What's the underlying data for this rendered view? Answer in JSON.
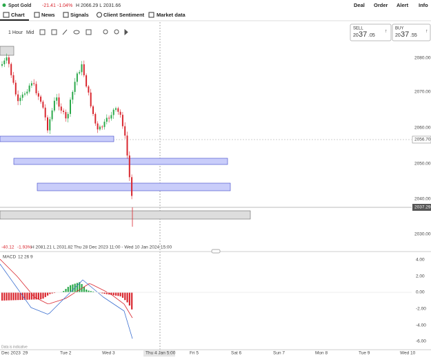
{
  "header": {
    "instrument": "Spot Gold",
    "change": "-21.41",
    "change_pct": "-1.04%",
    "high_low": "H 2066.29  L 2031.66",
    "actions": [
      "Deal",
      "Order",
      "Alert",
      "Info"
    ]
  },
  "tabs": [
    "Chart",
    "News",
    "Signals",
    "Client Sentiment",
    "Market data"
  ],
  "toolbar": {
    "interval": "1 Hour",
    "price_type": "Mid"
  },
  "sell": {
    "label": "SELL",
    "lead": "20",
    "big": "37",
    "tail": ".05"
  },
  "buy": {
    "label": "BUY",
    "lead": "20",
    "big": "37",
    "tail": ".55"
  },
  "price_axis": {
    "labels": [
      "2080.00",
      "2070.00",
      "2060.00",
      "2050.00",
      "2040.00",
      "2030.00"
    ],
    "markers": [
      "2056.70",
      "2037.29"
    ]
  },
  "info_bar": [
    "-40.12",
    "-1.93%",
    "H 2081.21",
    "L 2031.82",
    "Thu 28 Dec 2023 11:00 - Wed 10 Jan 2024 15:00"
  ],
  "macd": {
    "label": "MACD",
    "params": [
      "12",
      "26",
      "9"
    ],
    "axis": [
      "4.00",
      "2.00",
      "0.00",
      "-2.00",
      "-4.00",
      "-6.00"
    ]
  },
  "note": "Data is indicative",
  "time_axis": [
    "Dec 2023",
    "29",
    "Tue 2",
    "Wed 3",
    "Thu 4 Jan 5:00",
    "Fri 5",
    "Sat 6",
    "Sun 7",
    "Mon 8",
    "Tue 9",
    "Wed 10"
  ]
}
